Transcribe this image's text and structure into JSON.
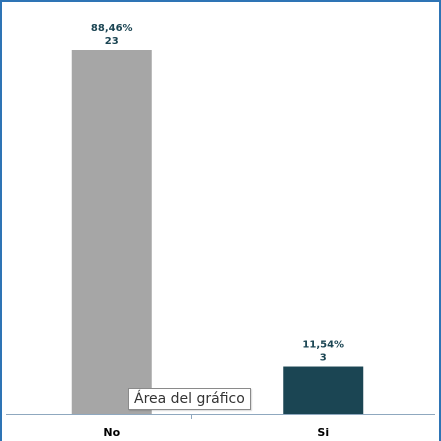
{
  "chart_data": {
    "type": "bar",
    "categories": [
      "No",
      "Si"
    ],
    "values": [
      23,
      3
    ],
    "percent_labels": [
      "88,46%",
      "11,54%"
    ],
    "count_labels": [
      "23",
      "3"
    ],
    "ylim": [
      0,
      23
    ],
    "grid": false,
    "legend": "none",
    "colors": [
      "#a6a6a6",
      "#1b4553"
    ]
  },
  "colors": {
    "frame": "#2e74b5",
    "axis": "#8fa8bf",
    "label_text": "#1b4553",
    "category_text": "#000000"
  },
  "tooltip": {
    "text": "Área del gráfico"
  }
}
